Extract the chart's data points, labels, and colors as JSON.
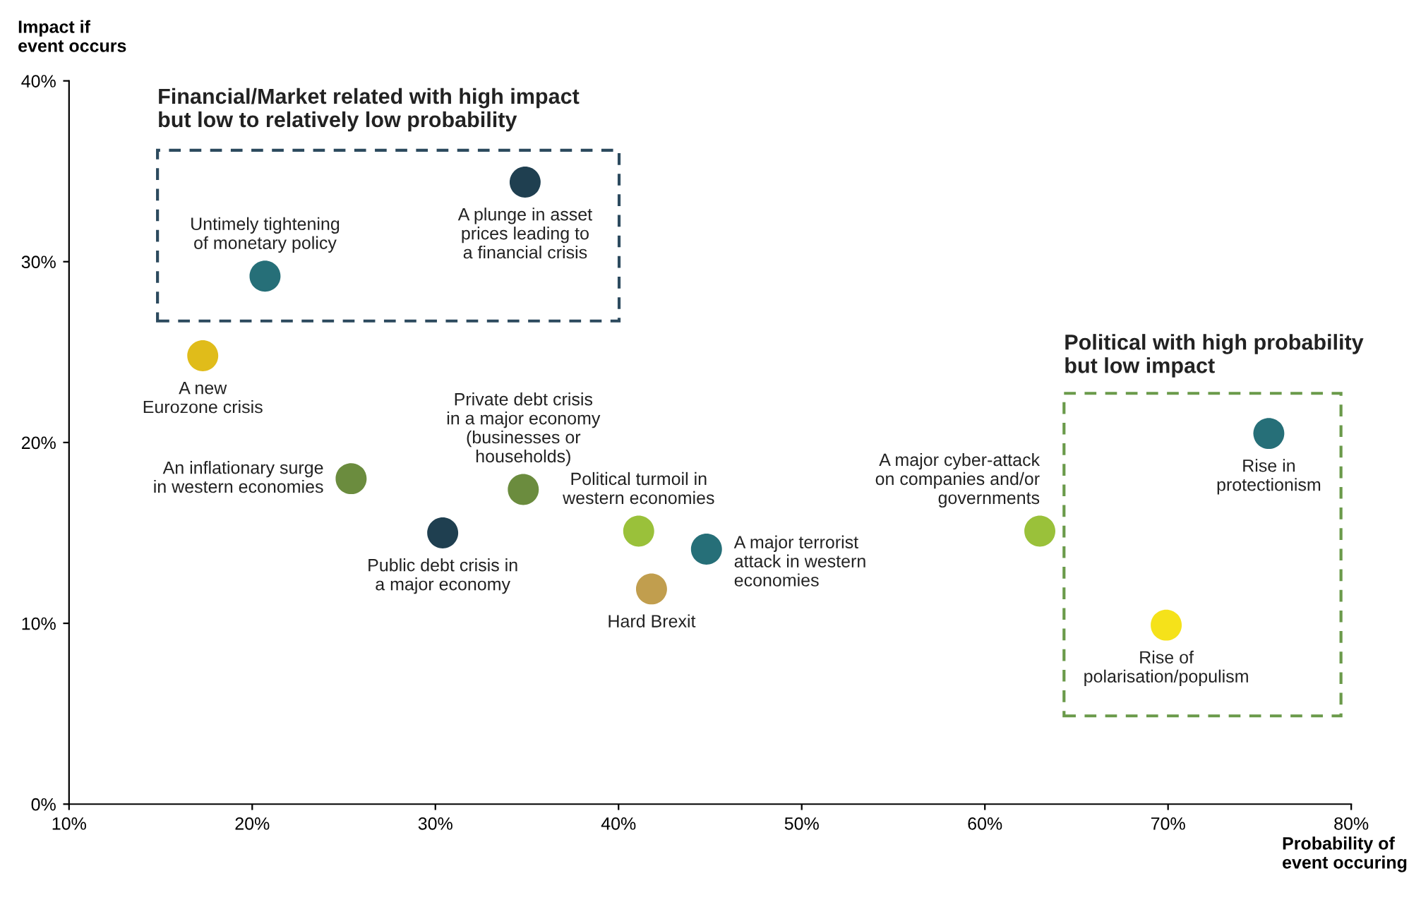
{
  "chart_data": {
    "type": "scatter",
    "xlabel": "Probability of\nevent occuring",
    "ylabel": "Impact if\nevent occurs",
    "xlim": [
      10,
      80
    ],
    "ylim": [
      0,
      40
    ],
    "xticks": [
      {
        "value": 10,
        "label": "10%"
      },
      {
        "value": 20,
        "label": "20%"
      },
      {
        "value": 30,
        "label": "30%"
      },
      {
        "value": 40,
        "label": "40%"
      },
      {
        "value": 50,
        "label": "50%"
      },
      {
        "value": 60,
        "label": "60%"
      },
      {
        "value": 70,
        "label": "70%"
      },
      {
        "value": 80,
        "label": "80%"
      }
    ],
    "yticks": [
      {
        "value": 0,
        "label": "0%"
      },
      {
        "value": 10,
        "label": "10%"
      },
      {
        "value": 20,
        "label": "20%"
      },
      {
        "value": 30,
        "label": "30%"
      },
      {
        "value": 40,
        "label": "40%"
      }
    ],
    "grid": false,
    "legend": false,
    "marker": "circle",
    "series": [
      {
        "x": [
          20.7,
          34.9,
          17.3,
          25.4,
          34.8,
          30.4,
          41.1,
          41.8,
          44.8,
          63.0,
          75.5,
          69.9
        ],
        "values": [
          29.2,
          34.4,
          24.8,
          18.0,
          17.4,
          15.0,
          15.1,
          11.9,
          14.1,
          15.1,
          20.5,
          9.9
        ],
        "colors": [
          "#266f78",
          "#1f3f50",
          "#e0bc1a",
          "#6b8c3e",
          "#6b8c3e",
          "#1f3f50",
          "#9ac13a",
          "#c19e4e",
          "#266f78",
          "#9ac13a",
          "#266f78",
          "#f5e21a"
        ]
      }
    ],
    "annotations": [
      {
        "text": "Untimely tightening\nof monetary policy",
        "x": 20.7,
        "y": 29.2
      },
      {
        "text": "A plunge in asset\nprices leading to\na financial crisis",
        "x": 34.9,
        "y": 34.4
      },
      {
        "text": "A new\nEurozone crisis",
        "x": 17.3,
        "y": 24.8
      },
      {
        "text": "An inflationary surge\nin western economies",
        "x": 25.4,
        "y": 18.0
      },
      {
        "text": "Private debt crisis\nin a major economy\n(businesses or\nhouseholds)",
        "x": 34.8,
        "y": 17.4
      },
      {
        "text": "Public debt crisis in\na major economy",
        "x": 30.4,
        "y": 15.0
      },
      {
        "text": "Political turmoil in\nwestern economies",
        "x": 41.1,
        "y": 15.1
      },
      {
        "text": "Hard Brexit",
        "x": 41.8,
        "y": 11.9
      },
      {
        "text": "A major terrorist\nattack in western\neconomies",
        "x": 44.8,
        "y": 14.1
      },
      {
        "text": "A major cyber-attack\non companies and/or\ngovernments",
        "x": 63.0,
        "y": 15.1
      },
      {
        "text": "Rise in\nprotectionism",
        "x": 75.5,
        "y": 20.5
      },
      {
        "text": "Rise of\npolarisation/populism",
        "x": 69.9,
        "y": 9.9
      },
      "Financial/Market related with high impact\nbut low to relatively low probability",
      "Political with high probability\nbut low impact"
    ]
  }
}
